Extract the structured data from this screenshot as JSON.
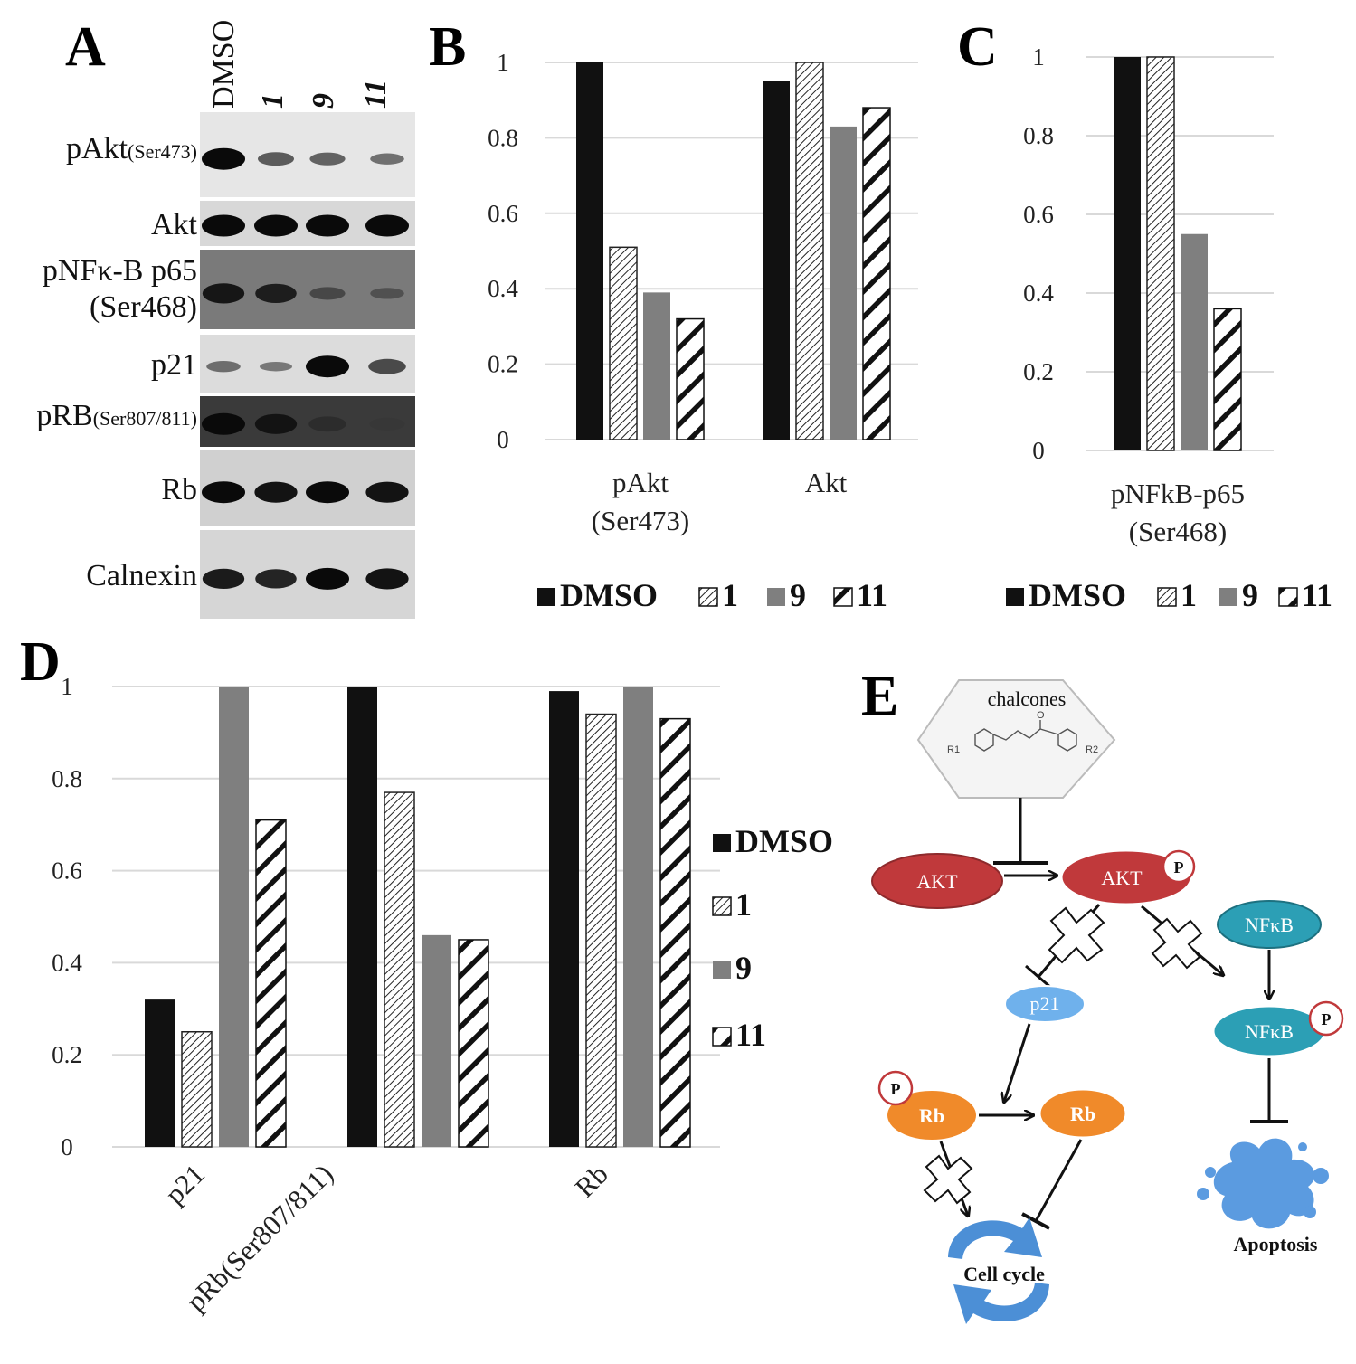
{
  "panels": {
    "A": "A",
    "B": "B",
    "C": "C",
    "D": "D",
    "E": "E"
  },
  "blot": {
    "lanes": [
      "DMSO",
      "1",
      "9",
      "11"
    ],
    "rows": [
      {
        "label": "pAkt",
        "sub": "(Ser473)",
        "intensity": [
          1.0,
          0.5,
          0.45,
          0.35
        ],
        "bg": "#e6e6e6"
      },
      {
        "label": "Akt",
        "sub": "",
        "intensity": [
          1.0,
          1.0,
          1.0,
          1.0
        ],
        "bg": "#d8d8d8"
      },
      {
        "label": "pNFκ-B p65",
        "sub": "(Ser468)",
        "intensity": [
          0.9,
          0.85,
          0.45,
          0.35
        ],
        "bg": "#7a7a7a"
      },
      {
        "label": "p21",
        "sub": "",
        "intensity": [
          0.35,
          0.25,
          1.0,
          0.6
        ],
        "bg": "#dcdcdc"
      },
      {
        "label": "pRB",
        "sub": "(Ser807/811)",
        "intensity": [
          1.0,
          0.9,
          0.6,
          0.45
        ],
        "bg": "#3a3a3a"
      },
      {
        "label": "Rb",
        "sub": "",
        "intensity": [
          1.0,
          0.95,
          1.0,
          0.95
        ],
        "bg": "#d0d0d0"
      },
      {
        "label": "Calnexin",
        "sub": "",
        "intensity": [
          0.9,
          0.85,
          1.0,
          0.95
        ],
        "bg": "#d6d6d6"
      }
    ]
  },
  "legend": {
    "labels": [
      "DMSO",
      "1",
      "9",
      "11"
    ]
  },
  "colors": {
    "dmso": "#111111",
    "c9": "#7f7f7f",
    "grid": "#d9d9d9",
    "akt": "#c0393b",
    "nfkb": "#2c9fb5",
    "p21": "#6fb1ec",
    "rb": "#f08a2a"
  },
  "chart_data": [
    {
      "type": "bar",
      "panel": "B",
      "categories": [
        "pAkt (Ser473)",
        "Akt"
      ],
      "category_lines": [
        [
          "pAkt",
          "(Ser473)"
        ],
        [
          "Akt"
        ]
      ],
      "series": [
        {
          "name": "DMSO",
          "values": [
            1.0,
            0.95
          ]
        },
        {
          "name": "1",
          "values": [
            0.51,
            1.0
          ]
        },
        {
          "name": "9",
          "values": [
            0.39,
            0.83
          ]
        },
        {
          "name": "11",
          "values": [
            0.32,
            0.88
          ]
        }
      ],
      "yticks": [
        "0",
        "0.2",
        "0.4",
        "0.6",
        "0.8",
        "1"
      ],
      "ylim": [
        0,
        1
      ],
      "legend": "bottom"
    },
    {
      "type": "bar",
      "panel": "C",
      "categories": [
        "pNFkB-p65 (Ser468)"
      ],
      "category_lines": [
        [
          "pNFkB-p65",
          "(Ser468)"
        ]
      ],
      "series": [
        {
          "name": "DMSO",
          "values": [
            1.0
          ]
        },
        {
          "name": "1",
          "values": [
            1.0
          ]
        },
        {
          "name": "9",
          "values": [
            0.55
          ]
        },
        {
          "name": "11",
          "values": [
            0.36
          ]
        }
      ],
      "yticks": [
        "0",
        "0.2",
        "0.4",
        "0.6",
        "0.8",
        "1"
      ],
      "ylim": [
        0,
        1
      ],
      "legend": "bottom"
    },
    {
      "type": "bar",
      "panel": "D",
      "categories": [
        "p21",
        "pRb(Ser807/811)",
        "Rb"
      ],
      "series": [
        {
          "name": "DMSO",
          "values": [
            0.32,
            1.0,
            0.99
          ]
        },
        {
          "name": "1",
          "values": [
            0.25,
            0.77,
            0.94
          ]
        },
        {
          "name": "9",
          "values": [
            1.0,
            0.46,
            1.0
          ]
        },
        {
          "name": "11",
          "values": [
            0.71,
            0.45,
            0.93
          ]
        }
      ],
      "yticks": [
        "0",
        "0.2",
        "0.4",
        "0.6",
        "0.8",
        "1"
      ],
      "ylim": [
        0,
        1
      ],
      "legend": "right"
    }
  ],
  "diagram": {
    "chalcones": "chalcones",
    "akt": "AKT",
    "akt_p": "AKT",
    "p": "P",
    "nfkb": "NFκB",
    "nfkb_p": "NFκB",
    "p21": "p21",
    "rb_p": "Rb",
    "rb": "Rb",
    "cell_cycle": "Cell cycle",
    "apoptosis": "Apoptosis",
    "structure_labels": [
      "R1",
      "R2",
      "O"
    ]
  }
}
